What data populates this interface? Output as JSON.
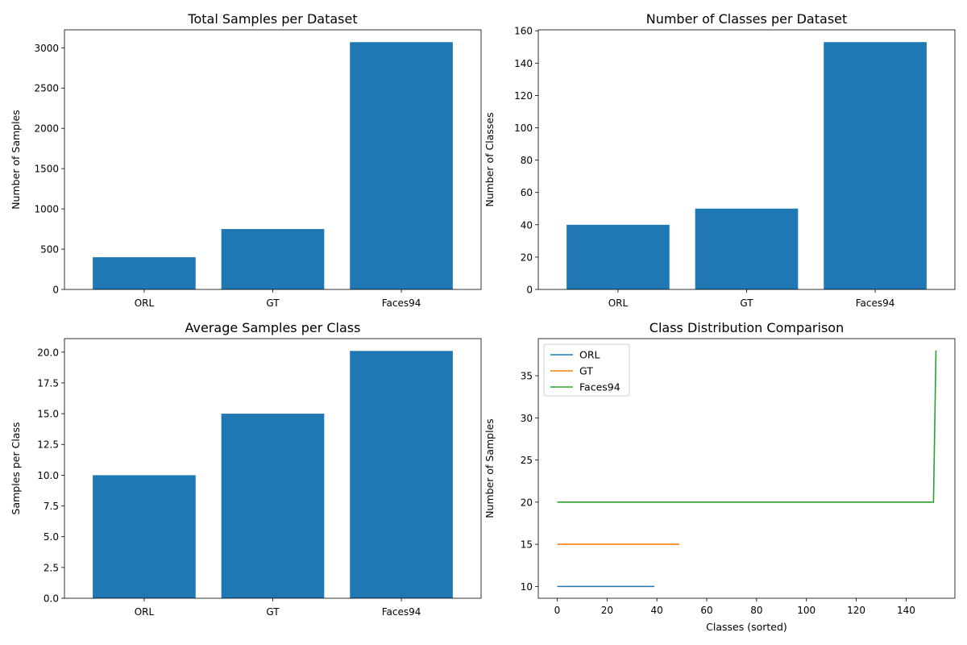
{
  "chart_data": [
    {
      "type": "bar",
      "title": "Total Samples per Dataset",
      "xlabel": "",
      "ylabel": "Number of Samples",
      "categories": [
        "ORL",
        "GT",
        "Faces94"
      ],
      "values": [
        400,
        750,
        3070
      ],
      "ylim": [
        0,
        3223
      ],
      "yticks": [
        0,
        500,
        1000,
        1500,
        2000,
        2500,
        3000
      ],
      "ytick_labels": [
        "0",
        "500",
        "1000",
        "1500",
        "2000",
        "2500",
        "3000"
      ],
      "color": "#1f77b4",
      "grid": false
    },
    {
      "type": "bar",
      "title": "Number of Classes per Dataset",
      "xlabel": "",
      "ylabel": "Number of Classes",
      "categories": [
        "ORL",
        "GT",
        "Faces94"
      ],
      "values": [
        40,
        50,
        153
      ],
      "ylim": [
        0,
        160.6
      ],
      "yticks": [
        0,
        20,
        40,
        60,
        80,
        100,
        120,
        140,
        160
      ],
      "ytick_labels": [
        "0",
        "20",
        "40",
        "60",
        "80",
        "100",
        "120",
        "140",
        "160"
      ],
      "color": "#1f77b4",
      "grid": false
    },
    {
      "type": "bar",
      "title": "Average Samples per Class",
      "xlabel": "",
      "ylabel": "Samples per Class",
      "categories": [
        "ORL",
        "GT",
        "Faces94"
      ],
      "values": [
        10.0,
        15.0,
        20.1
      ],
      "ylim": [
        0,
        21.1
      ],
      "yticks": [
        0,
        2.5,
        5,
        7.5,
        10,
        12.5,
        15,
        17.5,
        20
      ],
      "ytick_labels": [
        "0.0",
        "2.5",
        "5.0",
        "7.5",
        "10.0",
        "12.5",
        "15.0",
        "17.5",
        "20.0"
      ],
      "color": "#1f77b4",
      "grid": false
    },
    {
      "type": "line",
      "title": "Class Distribution Comparison",
      "xlabel": "Classes (sorted)",
      "ylabel": "Number of Samples",
      "xlim": [
        -7.6,
        159.6
      ],
      "ylim": [
        8.6,
        39.4
      ],
      "xticks": [
        0,
        20,
        40,
        60,
        80,
        100,
        120,
        140
      ],
      "xtick_labels": [
        "0",
        "20",
        "40",
        "60",
        "80",
        "100",
        "120",
        "140"
      ],
      "yticks": [
        10,
        15,
        20,
        25,
        30,
        35
      ],
      "ytick_labels": [
        "10",
        "15",
        "20",
        "25",
        "30",
        "35"
      ],
      "legend": "top-left",
      "grid": false,
      "series": [
        {
          "name": "ORL",
          "color": "#1f77b4",
          "x": [
            0,
            39
          ],
          "y": [
            10,
            10
          ]
        },
        {
          "name": "GT",
          "color": "#ff7f0e",
          "x": [
            0,
            49
          ],
          "y": [
            15,
            15
          ]
        },
        {
          "name": "Faces94",
          "color": "#2ca02c",
          "x": [
            0,
            151,
            152
          ],
          "y": [
            20,
            20,
            38
          ]
        }
      ]
    }
  ]
}
